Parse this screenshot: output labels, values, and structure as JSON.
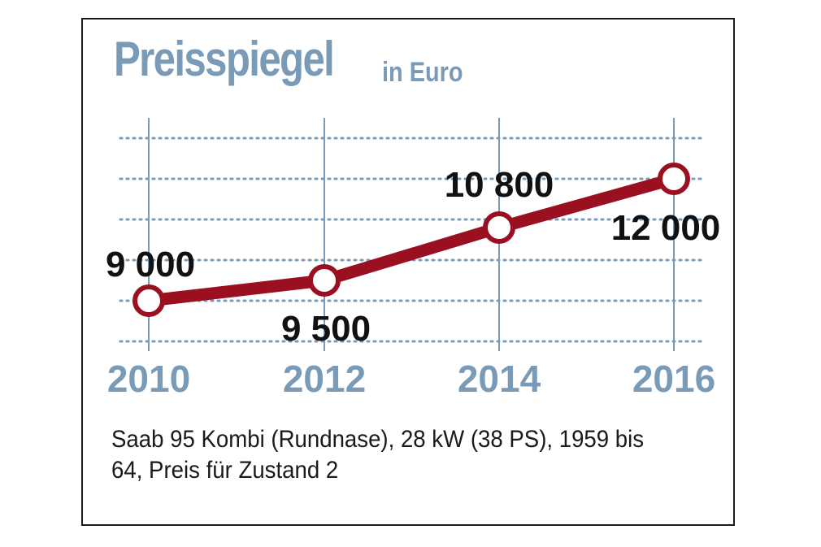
{
  "chart_data": {
    "type": "line",
    "title": "Preisspiegel",
    "subtitle": "in Euro",
    "x": [
      "2010",
      "2012",
      "2014",
      "2016"
    ],
    "values": [
      9000,
      9500,
      10800,
      12000
    ],
    "value_labels": [
      "9 000",
      "9 500",
      "10 800",
      "12 000"
    ],
    "ylim": [
      8000,
      13000
    ],
    "grid": true,
    "line_color": "#9b1020",
    "accent_color": "#7a9bb8"
  },
  "footnote": "Saab 95 Kombi (Rundnase), 28 kW (38 PS), 1959 bis 64, Preis für Zustand 2"
}
